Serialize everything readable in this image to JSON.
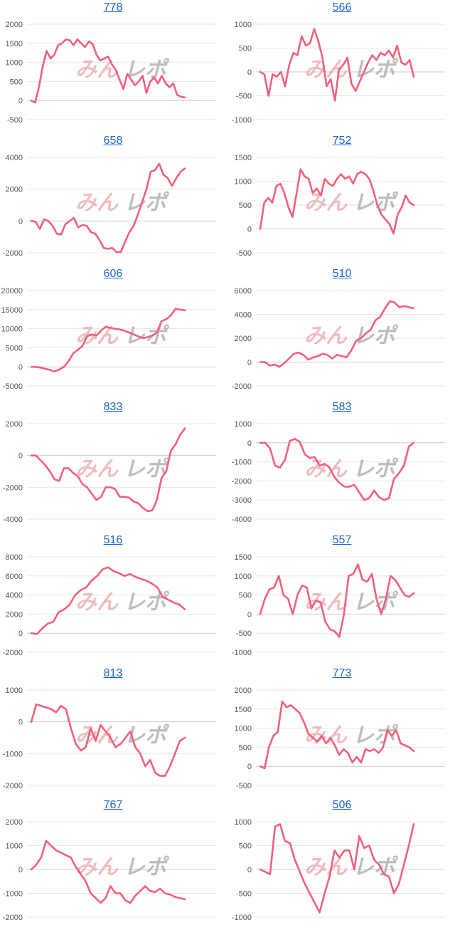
{
  "watermark": {
    "part1": "みん",
    "part2": "レポ"
  },
  "colors": {
    "line": "#f2607a",
    "title": "#1a66cc",
    "grid": "#e6e6e6",
    "zero": "#cccccc"
  },
  "chart_data": [
    {
      "type": "line",
      "title": "778",
      "ylim": [
        -500,
        2000
      ],
      "yticks": [
        2000,
        1500,
        1000,
        500,
        0,
        -500
      ],
      "values": [
        0,
        -50,
        350,
        900,
        1300,
        1100,
        1200,
        1450,
        1500,
        1600,
        1580,
        1450,
        1600,
        1500,
        1400,
        1550,
        1480,
        1200,
        1050,
        1100,
        1150,
        950,
        800,
        550,
        300,
        700,
        550,
        400,
        500,
        650,
        200,
        500,
        600,
        450,
        650,
        450,
        350,
        450,
        150,
        100,
        80
      ]
    },
    {
      "type": "line",
      "title": "566",
      "ylim": [
        -1000,
        1000
      ],
      "yticks": [
        1000,
        500,
        0,
        -500,
        -1000
      ],
      "values": [
        0,
        -50,
        -500,
        -50,
        -100,
        0,
        -300,
        150,
        400,
        350,
        750,
        550,
        600,
        900,
        650,
        300,
        -300,
        -150,
        -600,
        50,
        150,
        300,
        -250,
        -400,
        -200,
        0,
        200,
        350,
        250,
        400,
        350,
        450,
        300,
        550,
        200,
        150,
        250,
        -100
      ]
    },
    {
      "type": "line",
      "title": "658",
      "ylim": [
        -2000,
        4000
      ],
      "yticks": [
        4000,
        2000,
        0,
        -2000
      ],
      "values": [
        0,
        -50,
        -500,
        100,
        0,
        -300,
        -800,
        -850,
        -200,
        0,
        200,
        -400,
        -250,
        -300,
        -700,
        -800,
        -1200,
        -1700,
        -1750,
        -1700,
        -1950,
        -1950,
        -1300,
        -700,
        -300,
        400,
        1200,
        2000,
        3100,
        3200,
        3600,
        2900,
        2700,
        2200,
        2700,
        3100,
        3300
      ]
    },
    {
      "type": "line",
      "title": "752",
      "ylim": [
        -500,
        1500
      ],
      "yticks": [
        1500,
        1000,
        500,
        0,
        -500
      ],
      "values": [
        0,
        550,
        650,
        550,
        900,
        950,
        750,
        450,
        250,
        750,
        1250,
        1100,
        1050,
        750,
        850,
        700,
        1050,
        950,
        900,
        1050,
        1150,
        1050,
        1100,
        950,
        1150,
        1200,
        1150,
        1050,
        800,
        500,
        300,
        200,
        100,
        -100,
        300,
        450,
        700,
        550,
        500
      ]
    },
    {
      "type": "line",
      "title": "606",
      "ylim": [
        -5000,
        20000
      ],
      "yticks": [
        20000,
        15000,
        10000,
        5000,
        0,
        -5000
      ],
      "values": [
        0,
        0,
        -200,
        -500,
        -800,
        -1200,
        -700,
        0,
        1500,
        3500,
        4500,
        5500,
        8000,
        8500,
        8200,
        9500,
        10500,
        10200,
        10000,
        9800,
        9500,
        9000,
        8500,
        8000,
        7500,
        7800,
        8200,
        9000,
        12000,
        12500,
        13500,
        15200,
        15000,
        14800
      ]
    },
    {
      "type": "line",
      "title": "510",
      "ylim": [
        -2000,
        6000
      ],
      "yticks": [
        6000,
        4000,
        2000,
        0,
        -2000
      ],
      "values": [
        0,
        0,
        -300,
        -200,
        -400,
        -100,
        300,
        700,
        800,
        600,
        200,
        400,
        500,
        700,
        600,
        300,
        600,
        500,
        400,
        1000,
        1800,
        2000,
        2400,
        2700,
        3500,
        3800,
        4500,
        5100,
        5000,
        4600,
        4700,
        4600,
        4500
      ]
    },
    {
      "type": "line",
      "title": "833",
      "ylim": [
        -4000,
        2000
      ],
      "yticks": [
        2000,
        0,
        -2000,
        -4000
      ],
      "values": [
        0,
        0,
        -300,
        -600,
        -1000,
        -1500,
        -1600,
        -800,
        -800,
        -1100,
        -1300,
        -1800,
        -2000,
        -2400,
        -2800,
        -2600,
        -2000,
        -2000,
        -2100,
        -2600,
        -2600,
        -2650,
        -2900,
        -3000,
        -3300,
        -3500,
        -3450,
        -2800,
        -1400,
        -1000,
        300,
        700,
        1300,
        1700
      ]
    },
    {
      "type": "line",
      "title": "583",
      "ylim": [
        -4000,
        1000
      ],
      "yticks": [
        1000,
        0,
        -1000,
        -2000,
        -3000,
        -4000
      ],
      "values": [
        0,
        0,
        -300,
        -1200,
        -1300,
        -900,
        100,
        200,
        50,
        -600,
        -800,
        -750,
        -1200,
        -1100,
        -1300,
        -1800,
        -2100,
        -2300,
        -2300,
        -2200,
        -2600,
        -3000,
        -2900,
        -2500,
        -2850,
        -3000,
        -2900,
        -1900,
        -1600,
        -1200,
        -200,
        0
      ]
    },
    {
      "type": "line",
      "title": "516",
      "ylim": [
        -2000,
        8000
      ],
      "yticks": [
        8000,
        6000,
        4000,
        2000,
        0,
        -2000
      ],
      "values": [
        0,
        -100,
        500,
        1000,
        1200,
        2200,
        2500,
        3000,
        4000,
        4500,
        4800,
        5500,
        6000,
        6700,
        6900,
        6500,
        6300,
        6000,
        6200,
        5900,
        5700,
        5500,
        5200,
        4800,
        3800,
        3500,
        3200,
        3000,
        2500
      ]
    },
    {
      "type": "line",
      "title": "557",
      "ylim": [
        -1000,
        1500
      ],
      "yticks": [
        1500,
        1000,
        500,
        0,
        -500,
        -1000
      ],
      "values": [
        0,
        400,
        650,
        700,
        1000,
        500,
        400,
        0,
        500,
        750,
        700,
        150,
        350,
        300,
        -200,
        -400,
        -450,
        -600,
        0,
        1000,
        1050,
        1300,
        900,
        850,
        1050,
        400,
        0,
        400,
        1000,
        900,
        700,
        500,
        450,
        550
      ]
    },
    {
      "type": "line",
      "title": "813",
      "ylim": [
        -2000,
        1000
      ],
      "yticks": [
        1000,
        0,
        -1000,
        -2000
      ],
      "values": [
        0,
        550,
        500,
        450,
        400,
        300,
        500,
        400,
        -200,
        -700,
        -900,
        -800,
        -200,
        -600,
        -100,
        -300,
        -500,
        -800,
        -700,
        -500,
        -300,
        -800,
        -1000,
        -1400,
        -1200,
        -1600,
        -1700,
        -1700,
        -1400,
        -1000,
        -600,
        -500
      ]
    },
    {
      "type": "line",
      "title": "773",
      "ylim": [
        -500,
        2000
      ],
      "yticks": [
        2000,
        1500,
        1000,
        500,
        0,
        -500
      ],
      "values": [
        0,
        -50,
        500,
        800,
        900,
        1700,
        1550,
        1600,
        1500,
        1400,
        1150,
        850,
        750,
        650,
        800,
        600,
        750,
        550,
        300,
        450,
        350,
        100,
        250,
        100,
        450,
        400,
        450,
        350,
        500,
        950,
        800,
        950,
        600,
        550,
        500,
        400
      ]
    },
    {
      "type": "line",
      "title": "767",
      "ylim": [
        -2000,
        2000
      ],
      "yticks": [
        2000,
        1000,
        0,
        -1000,
        -2000
      ],
      "values": [
        0,
        200,
        500,
        1200,
        1000,
        800,
        700,
        600,
        500,
        100,
        -200,
        -500,
        -1000,
        -1200,
        -1400,
        -1200,
        -700,
        -1000,
        -1000,
        -1300,
        -1400,
        -1100,
        -900,
        -700,
        -900,
        -950,
        -800,
        -1000,
        -1050,
        -1150,
        -1200,
        -1250
      ]
    },
    {
      "type": "line",
      "title": "506",
      "ylim": [
        -1000,
        1000
      ],
      "yticks": [
        1000,
        500,
        0,
        -500,
        -1000
      ],
      "values": [
        0,
        -50,
        -100,
        900,
        950,
        600,
        550,
        200,
        -50,
        -300,
        -500,
        -700,
        -900,
        -500,
        -150,
        400,
        250,
        400,
        400,
        0,
        700,
        450,
        500,
        200,
        100,
        -100,
        -150,
        -500,
        -300,
        100,
        500,
        950
      ]
    }
  ]
}
